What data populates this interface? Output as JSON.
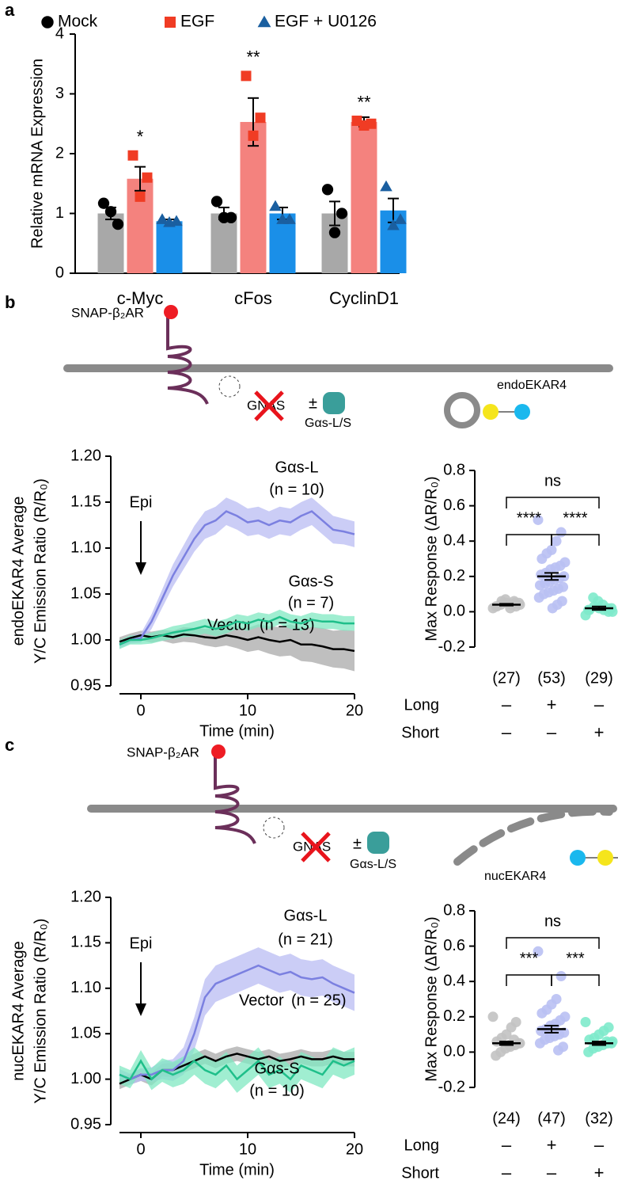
{
  "panel_labels": [
    "a",
    "b",
    "c"
  ],
  "diagrams": [
    {
      "receptor": "SNAP-β₂AR",
      "gene": "GNAS",
      "pm": "±",
      "rescue": "Gαs-L/S",
      "sensor": "endoEKAR4"
    },
    {
      "receptor": "SNAP-β₂AR",
      "gene": "GNAS",
      "pm": "±",
      "rescue": "Gαs-L/S",
      "sensor": "nucEKAR4"
    }
  ],
  "chart_data": [
    {
      "type": "bar",
      "ylabel": "Relative mRNA Expression",
      "categories": [
        "c-Myc",
        "cFos",
        "CyclinD1"
      ],
      "ylim": [
        0,
        4
      ],
      "yticks": [
        0,
        1,
        2,
        3,
        4
      ],
      "annotations": [
        "*",
        "**",
        "**"
      ],
      "series": [
        {
          "name": "Mock",
          "color": "#a8a8a8",
          "point_color": "#000000",
          "marker": "circle",
          "values": [
            1.0,
            1.0,
            1.0
          ],
          "errors": [
            0.1,
            0.1,
            0.2
          ],
          "points": [
            [
              1.17,
              0.82,
              1.03
            ],
            [
              1.2,
              0.93,
              0.93
            ],
            [
              1.4,
              1.0,
              0.68
            ]
          ]
        },
        {
          "name": "EGF",
          "color": "#f4827e",
          "point_color": "#f03c24",
          "marker": "square",
          "values": [
            1.58,
            2.53,
            2.53
          ],
          "errors": [
            0.2,
            0.4,
            0.08
          ],
          "points": [
            [
              1.97,
              1.6,
              1.28
            ],
            [
              3.3,
              2.6,
              2.3
            ],
            [
              2.55,
              2.5,
              2.47
            ]
          ]
        },
        {
          "name": "EGF + U0126",
          "color": "#1a8fe8",
          "point_color": "#1a5fa0",
          "marker": "triangle",
          "values": [
            0.87,
            1.0,
            1.05
          ],
          "errors": [
            0.03,
            0.1,
            0.2
          ],
          "points": [
            [
              0.9,
              0.87,
              0.85
            ],
            [
              1.12,
              0.9,
              0.9
            ],
            [
              1.45,
              0.9,
              0.8
            ]
          ]
        }
      ]
    },
    {
      "type": "line",
      "xlabel": "Time (min)",
      "ylabel": [
        "endoEKAR4 Average",
        "Y/C Emission Ratio (R/R₀)"
      ],
      "annotation": "Epi",
      "xlim": [
        -2,
        20
      ],
      "xticks": [
        0,
        10,
        20
      ],
      "ylim": [
        0.95,
        1.2
      ],
      "yticks": [
        0.95,
        {
          "value": 1.0,
          "label": "1.00"
        },
        1.05,
        {
          "value": 1.1,
          "label": "1.10"
        },
        1.15,
        {
          "value": 1.2,
          "label": "1.20"
        }
      ],
      "x": [
        -2,
        -1,
        0,
        1,
        2,
        3,
        4,
        5,
        6,
        7,
        8,
        9,
        10,
        11,
        12,
        13,
        14,
        15,
        16,
        17,
        18,
        19,
        20
      ],
      "series": [
        {
          "name": "Vector",
          "n_label": "(n = 13)",
          "color": "#000000",
          "band_color": "#a9a9a9",
          "values": [
            0.998,
            1.002,
            1.005,
            1.003,
            1.005,
            1.003,
            1.006,
            1.005,
            1.003,
            1.002,
            1.005,
            1.003,
            1.0,
            1.003,
            1.0,
            0.998,
            1.0,
            0.995,
            0.995,
            0.993,
            0.99,
            0.99,
            0.988
          ],
          "errors": [
            0.005,
            0.005,
            0.005,
            0.006,
            0.006,
            0.007,
            0.008,
            0.008,
            0.009,
            0.01,
            0.011,
            0.012,
            0.013,
            0.014,
            0.015,
            0.016,
            0.017,
            0.018,
            0.019,
            0.02,
            0.02,
            0.021,
            0.022
          ]
        },
        {
          "name": "Gαs-L",
          "n_label": "(n = 10)",
          "color": "#7b80e0",
          "band_color": "#b9bcf3",
          "values": [
            0.995,
            1.0,
            1.002,
            1.02,
            1.045,
            1.07,
            1.09,
            1.11,
            1.125,
            1.13,
            1.14,
            1.135,
            1.128,
            1.13,
            1.125,
            1.13,
            1.128,
            1.135,
            1.14,
            1.13,
            1.12,
            1.118,
            1.115
          ],
          "errors": [
            0.004,
            0.004,
            0.005,
            0.008,
            0.01,
            0.012,
            0.013,
            0.014,
            0.015,
            0.015,
            0.015,
            0.015,
            0.015,
            0.015,
            0.015,
            0.015,
            0.015,
            0.015,
            0.015,
            0.015,
            0.015,
            0.014,
            0.014
          ]
        },
        {
          "name": "Gαs-S",
          "n_label": "(n = 7)",
          "color": "#1fbf8a",
          "band_color": "#80e8c2",
          "values": [
            0.995,
            1.0,
            1.0,
            1.002,
            1.005,
            1.008,
            1.01,
            1.012,
            1.015,
            1.012,
            1.015,
            1.02,
            1.018,
            1.022,
            1.02,
            1.025,
            1.02,
            1.018,
            1.022,
            1.02,
            1.02,
            1.018,
            1.018
          ],
          "errors": [
            0.005,
            0.005,
            0.005,
            0.006,
            0.006,
            0.007,
            0.007,
            0.008,
            0.008,
            0.008,
            0.008,
            0.008,
            0.008,
            0.008,
            0.008,
            0.008,
            0.008,
            0.008,
            0.008,
            0.008,
            0.008,
            0.008,
            0.008
          ]
        }
      ]
    },
    {
      "type": "dot",
      "ylabel": "Max Response (ΔR/R₀)",
      "ylim": [
        -0.2,
        0.8
      ],
      "yticks": [
        -0.2,
        {
          "value": 0,
          "label": "0.0"
        },
        0.2,
        0.4,
        0.6,
        0.8
      ],
      "annotations": [
        "ns",
        "****",
        "****"
      ],
      "colors": [
        "#c2c2c2",
        "#b9c0f3",
        "#7eeacb"
      ],
      "count_labels": [
        "(27)",
        "(53)",
        "(29)"
      ],
      "values": [
        0.04,
        0.2,
        0.02
      ],
      "errors": [
        0.005,
        0.02,
        0.01
      ],
      "points": [
        [
          0.02,
          0.03,
          0.04,
          0.05,
          0.06,
          0.03,
          0.04,
          0.05,
          0.02,
          0.07,
          0.04,
          0.03,
          0.05,
          0.06
        ],
        [
          0.52,
          0.45,
          0.4,
          0.35,
          0.33,
          0.3,
          0.28,
          0.26,
          0.25,
          0.24,
          0.22,
          0.21,
          0.2,
          0.19,
          0.18,
          0.17,
          0.16,
          0.15,
          0.14,
          0.13,
          0.12,
          0.11,
          0.1,
          0.08,
          0.06,
          0.04,
          0.02
        ],
        [
          -0.02,
          0.0,
          0.01,
          0.02,
          0.03,
          0.01,
          0.0,
          0.02,
          0.04,
          0.06,
          0.08,
          0.01,
          0.02
        ]
      ],
      "rows": [
        {
          "name": "Long",
          "signs": [
            "–",
            "+",
            "–"
          ]
        },
        {
          "name": "Short",
          "signs": [
            "–",
            "–",
            "+"
          ]
        }
      ]
    },
    {
      "type": "line",
      "xlabel": "Time (min)",
      "ylabel": [
        "nucEKAR4 Average",
        "Y/C Emission Ratio (R/R₀)"
      ],
      "annotation": "Epi",
      "xlim": [
        -2,
        20
      ],
      "xticks": [
        0,
        10,
        20
      ],
      "ylim": [
        0.95,
        1.2
      ],
      "yticks": [
        0.95,
        {
          "value": 1.0,
          "label": "1.00"
        },
        1.05,
        {
          "value": 1.1,
          "label": "1.10"
        },
        1.15,
        {
          "value": 1.2,
          "label": "1.20"
        }
      ],
      "x": [
        -2,
        -1,
        0,
        1,
        2,
        3,
        4,
        5,
        6,
        7,
        8,
        9,
        10,
        11,
        12,
        13,
        14,
        15,
        16,
        17,
        18,
        19,
        20
      ],
      "series": [
        {
          "name": "Vector",
          "n_label": "(n = 25)",
          "color": "#000000",
          "band_color": "#a9a9a9",
          "values": [
            0.995,
            1.0,
            1.005,
            1.0,
            1.01,
            1.01,
            1.015,
            1.02,
            1.025,
            1.02,
            1.025,
            1.028,
            1.025,
            1.022,
            1.025,
            1.02,
            1.022,
            1.025,
            1.022,
            1.022,
            1.025,
            1.022,
            1.022
          ],
          "errors": [
            0.006,
            0.006,
            0.007,
            0.007,
            0.007,
            0.008,
            0.008,
            0.008,
            0.008,
            0.008,
            0.008,
            0.008,
            0.008,
            0.008,
            0.008,
            0.008,
            0.008,
            0.008,
            0.008,
            0.008,
            0.008,
            0.008,
            0.008
          ]
        },
        {
          "name": "Gαs-L",
          "n_label": "(n = 21)",
          "color": "#7b80e0",
          "band_color": "#b9bcf3",
          "values": [
            1.005,
            1.0,
            1.005,
            1.005,
            1.01,
            1.01,
            1.02,
            1.05,
            1.09,
            1.105,
            1.11,
            1.115,
            1.12,
            1.125,
            1.12,
            1.115,
            1.118,
            1.112,
            1.11,
            1.112,
            1.105,
            1.1,
            1.095
          ],
          "errors": [
            0.006,
            0.006,
            0.007,
            0.008,
            0.01,
            0.012,
            0.015,
            0.018,
            0.02,
            0.02,
            0.02,
            0.02,
            0.02,
            0.02,
            0.02,
            0.02,
            0.02,
            0.02,
            0.02,
            0.02,
            0.02,
            0.02,
            0.02
          ]
        },
        {
          "name": "Gαs-S",
          "n_label": "(n = 10)",
          "color": "#1fbf8a",
          "band_color": "#80e8c2",
          "values": [
            1.005,
            1.0,
            1.02,
            1.0,
            1.01,
            1.005,
            1.01,
            1.02,
            1.01,
            1.005,
            1.015,
            1.0,
            1.01,
            1.02,
            1.005,
            1.01,
            1.0,
            1.015,
            1.01,
            1.005,
            1.02,
            1.015,
            1.02
          ],
          "errors": [
            0.01,
            0.01,
            0.012,
            0.012,
            0.013,
            0.014,
            0.015,
            0.015,
            0.015,
            0.015,
            0.015,
            0.015,
            0.015,
            0.015,
            0.015,
            0.015,
            0.015,
            0.015,
            0.015,
            0.015,
            0.015,
            0.015,
            0.015
          ]
        }
      ]
    },
    {
      "type": "dot",
      "ylabel": "Max Response (ΔR/R₀)",
      "ylim": [
        -0.2,
        0.8
      ],
      "yticks": [
        -0.2,
        {
          "value": 0,
          "label": "0.0"
        },
        0.2,
        0.4,
        0.6,
        0.8
      ],
      "annotations": [
        "ns",
        "***",
        "***"
      ],
      "colors": [
        "#c2c2c2",
        "#b9c0f3",
        "#7eeacb"
      ],
      "count_labels": [
        "(24)",
        "(47)",
        "(32)"
      ],
      "values": [
        0.05,
        0.13,
        0.05
      ],
      "errors": [
        0.01,
        0.02,
        0.01
      ],
      "points": [
        [
          0.2,
          0.17,
          0.14,
          0.1,
          0.08,
          0.06,
          0.05,
          0.04,
          0.03,
          0.02,
          0.0,
          -0.02,
          0.05,
          0.07,
          0.04
        ],
        [
          0.57,
          0.43,
          0.3,
          0.27,
          0.24,
          0.22,
          0.2,
          0.18,
          0.16,
          0.15,
          0.13,
          0.12,
          0.11,
          0.1,
          0.09,
          0.08,
          0.07,
          0.05,
          0.03,
          0.01,
          0.14,
          0.12
        ],
        [
          0.17,
          0.14,
          0.12,
          0.1,
          0.08,
          0.07,
          0.06,
          0.05,
          0.04,
          0.03,
          0.02,
          0.0,
          0.05,
          0.06
        ]
      ],
      "rows": [
        {
          "name": "Long",
          "signs": [
            "–",
            "+",
            "–"
          ]
        },
        {
          "name": "Short",
          "signs": [
            "–",
            "–",
            "+"
          ]
        }
      ]
    }
  ]
}
